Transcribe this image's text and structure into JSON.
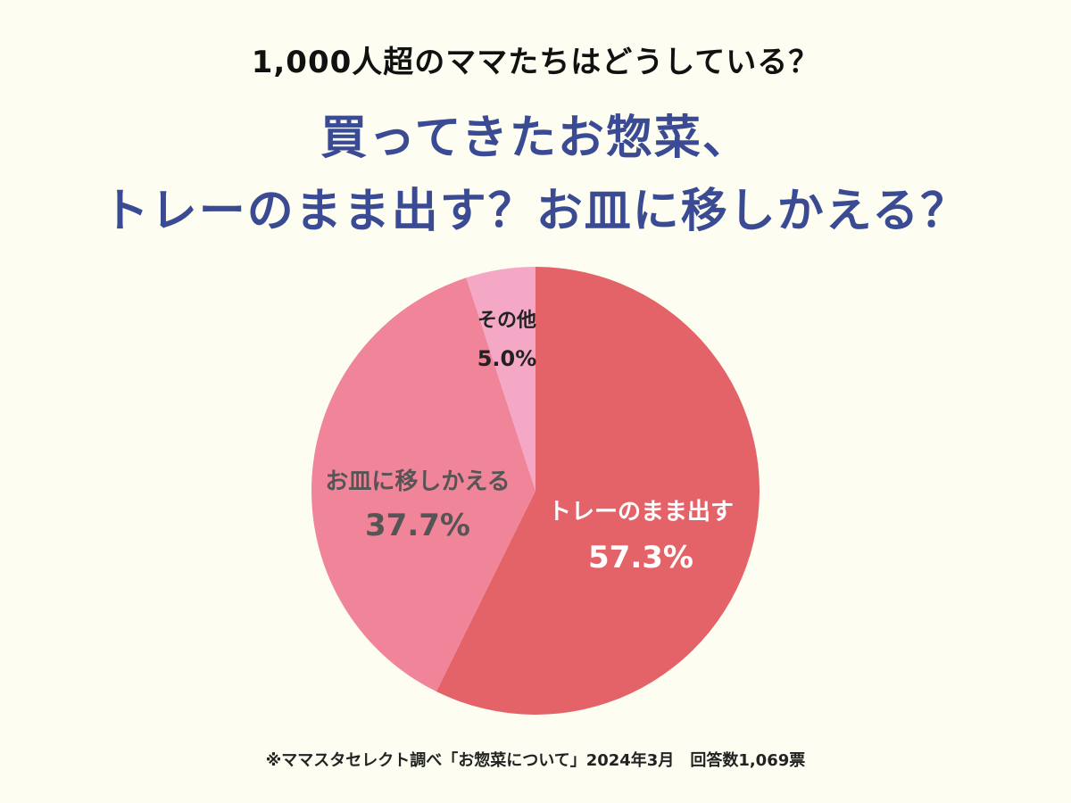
{
  "header": {
    "subtitle": "1,000人超のママたちはどうしている？",
    "title_line1": "買ってきたお惣菜、",
    "title_line2": "トレーのまま出す？お皿に移しかえる？"
  },
  "chart_data": {
    "type": "pie",
    "slices": [
      {
        "label": "トレーのまま出す",
        "value_text": "57.3%",
        "value": 57.3,
        "color": "#E36368",
        "text_color": "#FFFFFF"
      },
      {
        "label": "お皿に移しかえる",
        "value_text": "37.7%",
        "value": 37.7,
        "color": "#F0859A",
        "text_color": "#555555"
      },
      {
        "label": "その他",
        "value_text": "5.0%",
        "value": 5.0,
        "color": "#F5A8C6",
        "text_color": "#222222"
      }
    ],
    "start": "top",
    "direction": "clockwise"
  },
  "footer": {
    "source": "※ママスタセレクト調べ「お惣菜について」2024年3月　回答数1,069票"
  }
}
